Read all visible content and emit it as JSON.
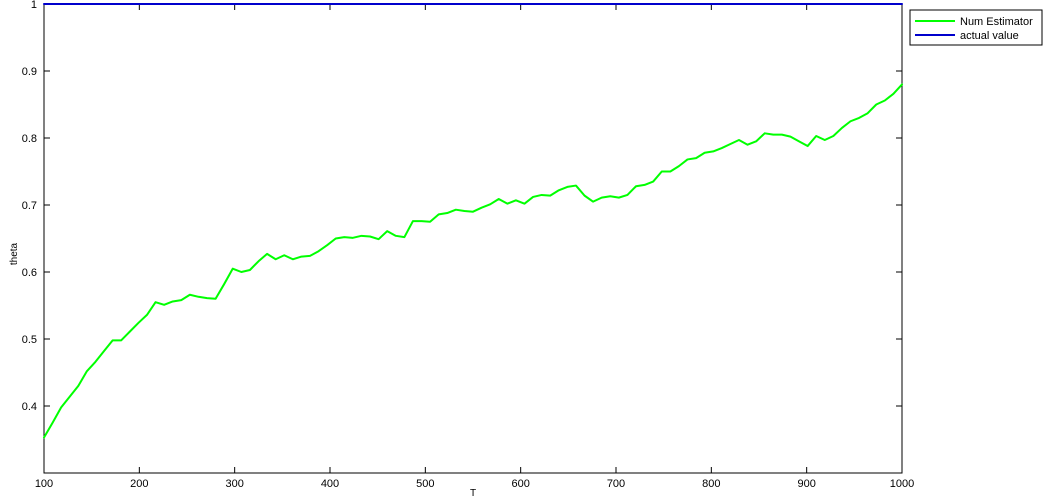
{
  "chart_data": {
    "type": "line",
    "title": "",
    "xlabel": "T",
    "ylabel": "theta",
    "xlim": [
      100,
      1000
    ],
    "ylim": [
      0.3,
      1.0
    ],
    "xticks": [
      100,
      200,
      300,
      400,
      500,
      600,
      700,
      800,
      900,
      1000
    ],
    "yticks": [
      0.4,
      0.5,
      0.6,
      0.7,
      0.8,
      0.9,
      1
    ],
    "ytick_labels": [
      "0.4",
      "0.5",
      "0.6",
      "0.7",
      "0.8",
      "0.9",
      "1"
    ],
    "grid": false,
    "legend_position": "top-right outside",
    "series": [
      {
        "name": "Num Estimator",
        "color": "#00ff00",
        "x": [
          100,
          109,
          118,
          127,
          136,
          145,
          154,
          163,
          172,
          181,
          190,
          199,
          208,
          217,
          226,
          235,
          244,
          253,
          262,
          271,
          280,
          289,
          298,
          307,
          316,
          325,
          334,
          343,
          352,
          361,
          370,
          379,
          388,
          397,
          406,
          415,
          424,
          433,
          442,
          451,
          460,
          469,
          478,
          487,
          496,
          505,
          514,
          523,
          532,
          541,
          550,
          559,
          568,
          577,
          586,
          595,
          604,
          613,
          622,
          631,
          640,
          649,
          658,
          667,
          676,
          685,
          694,
          703,
          712,
          721,
          730,
          739,
          748,
          757,
          766,
          775,
          784,
          793,
          802,
          811,
          820,
          829,
          838,
          847,
          856,
          865,
          874,
          883,
          892,
          901,
          910,
          919,
          928,
          937,
          946,
          955,
          964,
          973,
          982,
          991,
          1000
        ],
        "y": [
          0.353,
          0.375,
          0.398,
          0.414,
          0.43,
          0.452,
          0.466,
          0.482,
          0.498,
          0.498,
          0.511,
          0.524,
          0.536,
          0.555,
          0.551,
          0.556,
          0.558,
          0.566,
          0.563,
          0.561,
          0.56,
          0.582,
          0.605,
          0.6,
          0.603,
          0.616,
          0.627,
          0.619,
          0.625,
          0.619,
          0.623,
          0.624,
          0.631,
          0.64,
          0.65,
          0.652,
          0.651,
          0.654,
          0.653,
          0.649,
          0.661,
          0.654,
          0.652,
          0.676,
          0.676,
          0.675,
          0.686,
          0.688,
          0.693,
          0.691,
          0.69,
          0.696,
          0.701,
          0.709,
          0.702,
          0.707,
          0.702,
          0.712,
          0.715,
          0.714,
          0.722,
          0.727,
          0.729,
          0.714,
          0.705,
          0.711,
          0.713,
          0.711,
          0.715,
          0.728,
          0.73,
          0.735,
          0.75,
          0.75,
          0.758,
          0.768,
          0.77,
          0.778,
          0.78,
          0.785,
          0.791,
          0.797,
          0.79,
          0.795,
          0.807,
          0.805,
          0.805,
          0.802,
          0.795,
          0.788,
          0.803,
          0.797,
          0.803,
          0.815,
          0.825,
          0.83,
          0.837,
          0.85,
          0.856,
          0.866,
          0.88
        ]
      },
      {
        "name": "actual value",
        "color": "#0000cc",
        "x": [
          100,
          1000
        ],
        "y": [
          1.0,
          1.0
        ]
      }
    ]
  }
}
